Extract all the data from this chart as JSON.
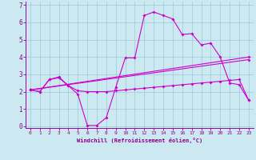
{
  "xlabel": "Windchill (Refroidissement éolien,°C)",
  "xlim": [
    -0.5,
    23.5
  ],
  "ylim": [
    -0.1,
    7.2
  ],
  "xticks": [
    0,
    1,
    2,
    3,
    4,
    5,
    6,
    7,
    8,
    9,
    10,
    11,
    12,
    13,
    14,
    15,
    16,
    17,
    18,
    19,
    20,
    21,
    22,
    23
  ],
  "yticks": [
    0,
    1,
    2,
    3,
    4,
    5,
    6,
    7
  ],
  "bg_color": "#cce8f0",
  "line_color": "#cc00cc",
  "line1_x": [
    0,
    1,
    2,
    3,
    4,
    5,
    6,
    7,
    8,
    9,
    10,
    11,
    12,
    13,
    14,
    15,
    16,
    17,
    18,
    19,
    20,
    21,
    22,
    23
  ],
  "line1_y": [
    2.1,
    2.0,
    2.7,
    2.8,
    2.35,
    1.85,
    0.05,
    0.05,
    0.5,
    2.25,
    3.95,
    3.95,
    6.4,
    6.6,
    6.4,
    6.2,
    5.3,
    5.35,
    4.7,
    4.8,
    4.0,
    2.5,
    2.4,
    1.5
  ],
  "line2_x": [
    0,
    1,
    2,
    3,
    4,
    5,
    6,
    7,
    8,
    9,
    10,
    11,
    12,
    13,
    14,
    15,
    16,
    17,
    18,
    19,
    20,
    21,
    22,
    23
  ],
  "line2_y": [
    2.1,
    2.0,
    2.7,
    2.85,
    2.35,
    2.05,
    2.0,
    2.0,
    2.0,
    2.05,
    2.1,
    2.15,
    2.2,
    2.25,
    2.3,
    2.35,
    2.4,
    2.45,
    2.5,
    2.55,
    2.6,
    2.65,
    2.7,
    1.5
  ],
  "line3_x": [
    0,
    23
  ],
  "line3_y": [
    2.1,
    4.0
  ],
  "line4_x": [
    0,
    23
  ],
  "line4_y": [
    2.1,
    3.85
  ],
  "grid_color": "#99ccdd",
  "markersize": 2.0,
  "linewidth": 0.8
}
